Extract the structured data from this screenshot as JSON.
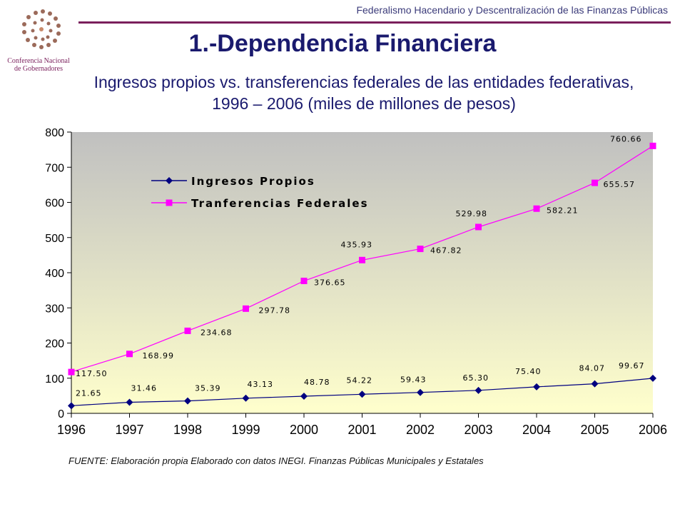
{
  "header": {
    "text": "Federalismo Hacendario y Descentralización de las Finanzas Públicas"
  },
  "logo": {
    "line1": "Conferencia Nacional",
    "line2": "de Gobernadores"
  },
  "title": "1.-Dependencia Financiera",
  "subtitle": "Ingresos propios vs. transferencias federales de las entidades federativas, 1996 – 2006 (miles de millones de pesos)",
  "source": "FUENTE: Elaboración propia Elaborado con datos INEGI. Finanzas Públicas Municipales y Estatales",
  "colors": {
    "accent": "#7a1f5c",
    "title": "#1a1a6e",
    "series1": "#000080",
    "series2": "#ff00ff"
  },
  "chart_data": {
    "type": "line",
    "x": [
      "1996",
      "1997",
      "1998",
      "1999",
      "2000",
      "2001",
      "2002",
      "2003",
      "2004",
      "2005",
      "2006"
    ],
    "ylim": [
      0,
      800
    ],
    "yticks": [
      "0",
      "100",
      "200",
      "300",
      "400",
      "500",
      "600",
      "700",
      "800"
    ],
    "grid": false,
    "legend": "top-left",
    "series": [
      {
        "name": "Ingresos Propios",
        "marker": "diamond",
        "values": [
          21.65,
          31.46,
          35.39,
          43.13,
          48.78,
          54.22,
          59.43,
          65.3,
          75.4,
          84.07,
          99.67
        ],
        "labels": [
          "21.65",
          "31.46",
          "35.39",
          "43.13",
          "48.78",
          "54.22",
          "59.43",
          "65.30",
          "75.40",
          "84.07",
          "99.67"
        ]
      },
      {
        "name": "Tranferencias Federales",
        "marker": "square",
        "values": [
          117.5,
          168.99,
          234.68,
          297.78,
          376.65,
          435.93,
          467.82,
          529.98,
          582.21,
          655.57,
          760.66
        ],
        "labels": [
          "117.50",
          "168.99",
          "234.68",
          "297.78",
          "376.65",
          "435.93",
          "467.82",
          "529.98",
          "582.21",
          "655.57",
          "760.66"
        ]
      }
    ]
  }
}
